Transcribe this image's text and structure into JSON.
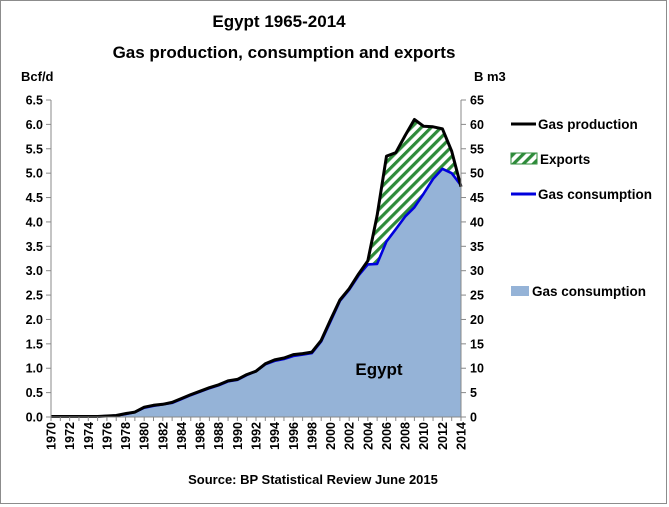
{
  "chart_data": {
    "type": "area",
    "title": "Egypt 1965-2014",
    "subtitle": "Gas production, consumption and exports",
    "ylabel_left": "Bcf/d",
    "ylabel_right": "B m3",
    "ylim_left": [
      0,
      6.5
    ],
    "ylim_right": [
      0,
      65
    ],
    "yticks_left": [
      "0.0",
      "0.5",
      "1.0",
      "1.5",
      "2.0",
      "2.5",
      "3.0",
      "3.5",
      "4.0",
      "4.5",
      "5.0",
      "5.5",
      "6.0",
      "6.5"
    ],
    "yticks_right": [
      "0",
      "5",
      "10",
      "15",
      "20",
      "25",
      "30",
      "35",
      "40",
      "45",
      "50",
      "55",
      "60",
      "65"
    ],
    "xticks": [
      "1970",
      "1972",
      "1974",
      "1976",
      "1978",
      "1980",
      "1982",
      "1984",
      "1986",
      "1988",
      "1990",
      "1992",
      "1994",
      "1996",
      "1998",
      "2000",
      "2002",
      "2004",
      "2006",
      "2008",
      "2010",
      "2012",
      "2014"
    ],
    "x": [
      1970,
      1971,
      1972,
      1973,
      1974,
      1975,
      1976,
      1977,
      1978,
      1979,
      1980,
      1981,
      1982,
      1983,
      1984,
      1985,
      1986,
      1987,
      1988,
      1989,
      1990,
      1991,
      1992,
      1993,
      1994,
      1995,
      1996,
      1997,
      1998,
      1999,
      2000,
      2001,
      2002,
      2003,
      2004,
      2005,
      2006,
      2007,
      2008,
      2009,
      2010,
      2011,
      2012,
      2013,
      2014
    ],
    "series": [
      {
        "name": "Gas production",
        "unit": "Bcf/d",
        "color": "#000000",
        "values": [
          0.01,
          0.01,
          0.01,
          0.01,
          0.01,
          0.01,
          0.02,
          0.03,
          0.07,
          0.1,
          0.2,
          0.24,
          0.26,
          0.3,
          0.38,
          0.46,
          0.53,
          0.6,
          0.66,
          0.74,
          0.77,
          0.87,
          0.94,
          1.09,
          1.17,
          1.21,
          1.28,
          1.3,
          1.33,
          1.57,
          1.99,
          2.4,
          2.63,
          2.93,
          3.2,
          4.13,
          5.35,
          5.42,
          5.77,
          6.1,
          5.96,
          5.95,
          5.91,
          5.45,
          4.72
        ]
      },
      {
        "name": "Gas consumption",
        "unit": "Bcf/d",
        "color": "#0000dd",
        "fill": "#95b3d7",
        "values": [
          0.01,
          0.01,
          0.01,
          0.01,
          0.01,
          0.01,
          0.02,
          0.03,
          0.06,
          0.1,
          0.19,
          0.23,
          0.26,
          0.29,
          0.37,
          0.45,
          0.52,
          0.59,
          0.65,
          0.73,
          0.76,
          0.86,
          0.94,
          1.08,
          1.15,
          1.19,
          1.25,
          1.28,
          1.31,
          1.55,
          1.96,
          2.38,
          2.61,
          2.9,
          3.13,
          3.14,
          3.6,
          3.85,
          4.11,
          4.3,
          4.58,
          4.88,
          5.09,
          5.0,
          4.75
        ]
      }
    ],
    "legend": [
      {
        "label": "Gas production",
        "kind": "line",
        "color": "#000000"
      },
      {
        "label": "Exports",
        "kind": "hatch",
        "color": "#2e8b3a"
      },
      {
        "label": "Gas consumption",
        "kind": "line",
        "color": "#0000dd"
      },
      {
        "label": "Gas consumption",
        "kind": "area",
        "color": "#95b3d7"
      }
    ],
    "legend_position": "right",
    "annotation": "Egypt",
    "source": "Source: BP Statistical Review  June 2015",
    "grid": false
  }
}
